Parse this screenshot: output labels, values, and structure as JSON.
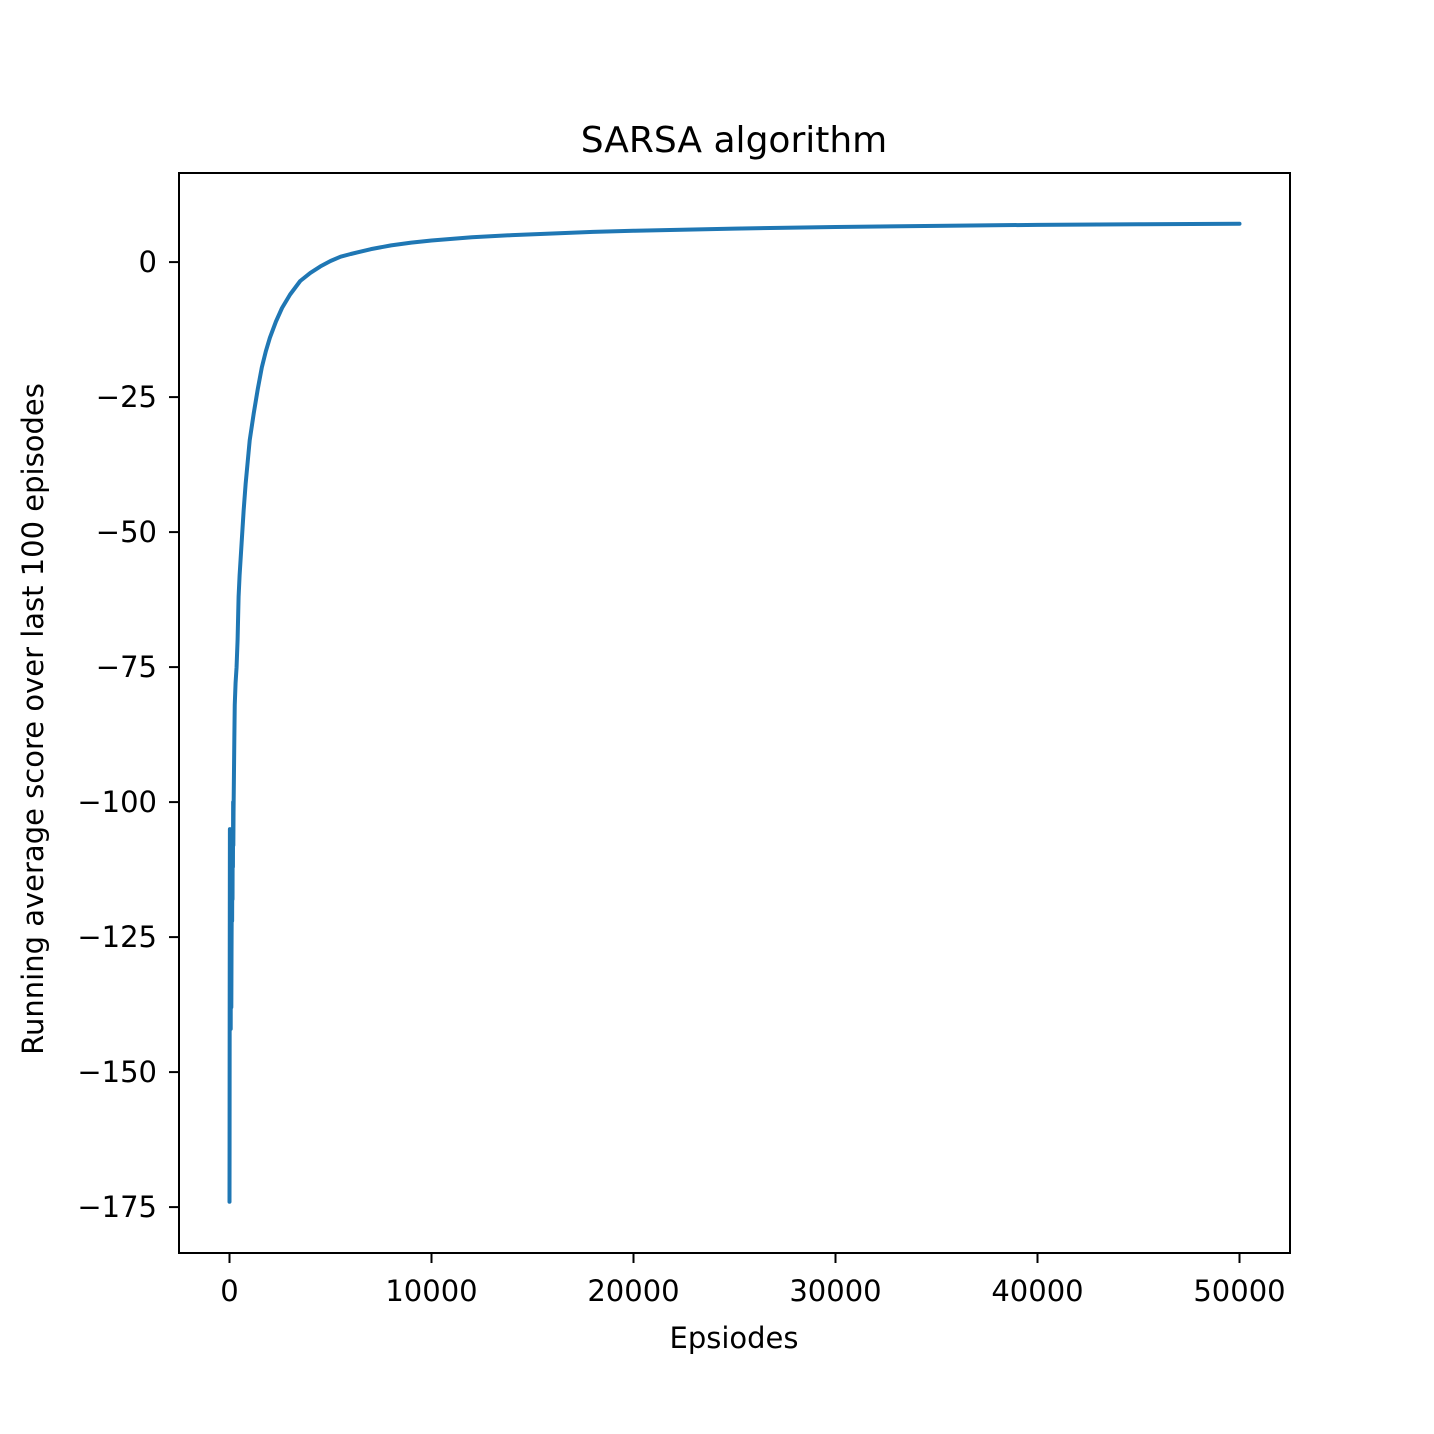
{
  "chart_data": {
    "type": "line",
    "title": "SARSA algorithm",
    "xlabel": "Epsiodes",
    "ylabel": "Running average score over last 100 episodes",
    "xlim": [
      -2500,
      52500
    ],
    "ylim": [
      -183.5,
      16.5
    ],
    "x_ticks": [
      0,
      10000,
      20000,
      30000,
      40000,
      50000
    ],
    "y_ticks": [
      0,
      -25,
      -50,
      -75,
      -100,
      -125,
      -150,
      -175
    ],
    "x_tick_labels": [
      "0",
      "10000",
      "20000",
      "30000",
      "40000",
      "50000"
    ],
    "y_tick_labels": [
      "0",
      "−25",
      "−50",
      "−75",
      "−100",
      "−125",
      "−150",
      "−175"
    ],
    "grid": false,
    "legend": "none",
    "series": [
      {
        "color": "#1f77b4",
        "x": [
          0,
          3,
          6,
          10,
          15,
          20,
          30,
          40,
          50,
          60,
          70,
          80,
          90,
          100,
          110,
          120,
          130,
          140,
          150,
          160,
          170,
          180,
          190,
          200,
          220,
          240,
          260,
          300,
          350,
          400,
          450,
          500,
          600,
          700,
          800,
          900,
          1000,
          1200,
          1400,
          1600,
          1800,
          2000,
          2300,
          2600,
          3000,
          3500,
          4000,
          4500,
          5000,
          5500,
          6000,
          7000,
          8000,
          9000,
          10000,
          12000,
          14000,
          16000,
          18000,
          20000,
          25000,
          30000,
          35000,
          40000,
          45000,
          50000
        ],
        "y": [
          -174,
          -165,
          -150,
          -135,
          -120,
          -105,
          -110,
          -135,
          -120,
          -142,
          -118,
          -125,
          -138,
          -128,
          -120,
          -115,
          -122,
          -110,
          -118,
          -105,
          -112,
          -100,
          -108,
          -102,
          -95,
          -88,
          -82,
          -78,
          -75,
          -70,
          -62,
          -58,
          -52,
          -46,
          -41,
          -37,
          -33,
          -28,
          -23.5,
          -19.5,
          -16.5,
          -14,
          -11,
          -8.5,
          -6,
          -3.5,
          -2,
          -0.8,
          0.2,
          1,
          1.5,
          2.4,
          3.1,
          3.6,
          4,
          4.6,
          5,
          5.3,
          5.6,
          5.8,
          6.2,
          6.5,
          6.7,
          6.9,
          7,
          7.1
        ]
      }
    ]
  }
}
